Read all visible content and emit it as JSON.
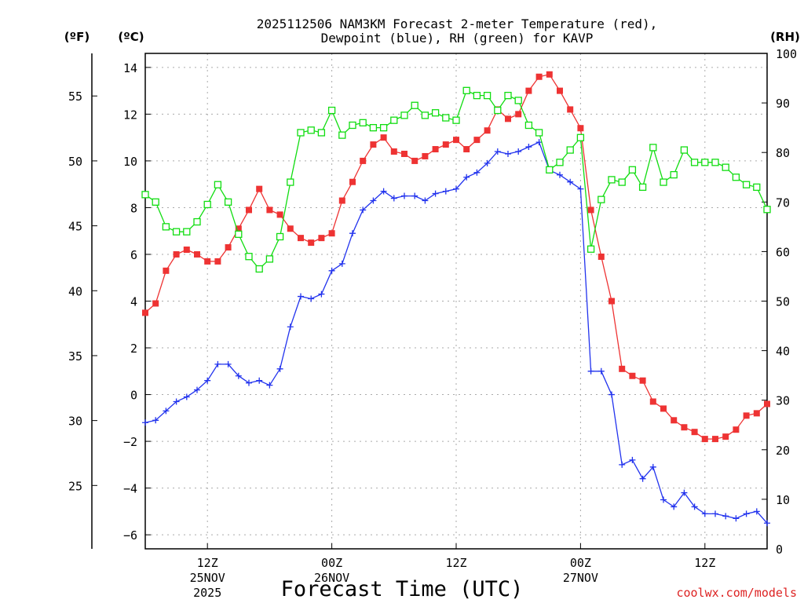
{
  "chart_data": {
    "type": "line",
    "title_line1": "2025112506 NAM3KM Forecast 2-meter Temperature (red),",
    "title_line2": "Dewpoint (blue), RH (green) for KAVP",
    "xlabel": "Forecast Time (UTC)",
    "unit_f": "(ºF)",
    "unit_c": "(ºC)",
    "unit_rh": "(RH)",
    "watermark": "coolwx.com/models",
    "x_range_hours": [
      0,
      60
    ],
    "ylim_c": [
      -6.6,
      14.6
    ],
    "ylim_rh": [
      0,
      100
    ],
    "yticks_c": [
      "14",
      "12",
      "10",
      "8",
      "6",
      "4",
      "2",
      "0",
      "−2",
      "−4",
      "−6"
    ],
    "yticks_c_values": [
      14,
      12,
      10,
      8,
      6,
      4,
      2,
      0,
      -2,
      -4,
      -6
    ],
    "yticks_f": [
      "55",
      "50",
      "45",
      "40",
      "35",
      "30",
      "25"
    ],
    "yticks_f_values": [
      55,
      50,
      45,
      40,
      35,
      30,
      25
    ],
    "yticks_rh": [
      "100",
      "90",
      "80",
      "70",
      "60",
      "50",
      "40",
      "30",
      "20",
      "10",
      "0"
    ],
    "yticks_rh_values": [
      100,
      90,
      80,
      70,
      60,
      50,
      40,
      30,
      20,
      10,
      0
    ],
    "xticks": [
      {
        "hour": 6,
        "line1": "12Z",
        "line2": "25NOV",
        "line3": "2025"
      },
      {
        "hour": 18,
        "line1": "00Z",
        "line2": "26NOV",
        "line3": ""
      },
      {
        "hour": 30,
        "line1": "12Z",
        "line2": "",
        "line3": ""
      },
      {
        "hour": 42,
        "line1": "00Z",
        "line2": "27NOV",
        "line3": ""
      },
      {
        "hour": 54,
        "line1": "12Z",
        "line2": "",
        "line3": ""
      }
    ],
    "series": [
      {
        "name": "Temperature",
        "color": "#ee3333",
        "axis": "c",
        "marker": "filled-square",
        "values": [
          3.5,
          3.9,
          5.3,
          6.0,
          6.2,
          6.0,
          5.7,
          5.7,
          6.3,
          7.1,
          7.9,
          8.8,
          7.9,
          7.7,
          7.1,
          6.7,
          6.5,
          6.7,
          6.9,
          8.3,
          9.1,
          10.0,
          10.7,
          11.0,
          10.4,
          10.3,
          10.0,
          10.2,
          10.5,
          10.7,
          10.9,
          10.5,
          10.9,
          11.3,
          12.2,
          11.8,
          12.0,
          13.0,
          13.6,
          13.7,
          13.0,
          12.2,
          11.4,
          7.9,
          5.9,
          4.0,
          1.1,
          0.8,
          0.6,
          -0.3,
          -0.6,
          -1.1,
          -1.4,
          -1.6,
          -1.9,
          -1.9,
          -1.8,
          -1.5,
          -0.9,
          -0.8,
          -0.4
        ]
      },
      {
        "name": "Dewpoint",
        "color": "#2233ee",
        "axis": "c",
        "marker": "plus",
        "values": [
          -1.2,
          -1.1,
          -0.7,
          -0.3,
          -0.1,
          0.2,
          0.6,
          1.3,
          1.3,
          0.8,
          0.5,
          0.6,
          0.4,
          1.1,
          2.9,
          4.2,
          4.1,
          4.3,
          5.3,
          5.6,
          6.9,
          7.9,
          8.3,
          8.7,
          8.4,
          8.5,
          8.5,
          8.3,
          8.6,
          8.7,
          8.8,
          9.3,
          9.5,
          9.9,
          10.4,
          10.3,
          10.4,
          10.6,
          10.8,
          9.6,
          9.4,
          9.1,
          8.8,
          1.0,
          1.0,
          0.0,
          -3.0,
          -2.8,
          -3.6,
          -3.1,
          -4.5,
          -4.8,
          -4.2,
          -4.8,
          -5.1,
          -5.1,
          -5.2,
          -5.3,
          -5.1,
          -5.0,
          -5.5
        ]
      },
      {
        "name": "RH",
        "color": "#11dd11",
        "axis": "rh",
        "marker": "open-square",
        "values": [
          71.5,
          70.0,
          65.0,
          64.0,
          64.0,
          66.0,
          69.5,
          73.5,
          70.0,
          63.5,
          59.0,
          56.5,
          58.5,
          63.0,
          74.0,
          84.0,
          84.5,
          84.0,
          88.5,
          83.5,
          85.5,
          86.0,
          85.0,
          85.0,
          86.5,
          87.5,
          89.5,
          87.5,
          88.0,
          87.0,
          86.5,
          92.5,
          91.5,
          91.5,
          88.5,
          91.5,
          90.5,
          85.5,
          84.0,
          76.5,
          78.0,
          80.5,
          83.0,
          60.5,
          70.5,
          74.5,
          74.0,
          76.5,
          73.0,
          81.0,
          74.0,
          75.5,
          80.5,
          78.0,
          78.0,
          78.0,
          77.0,
          75.0,
          73.5,
          73.0,
          68.5
        ]
      }
    ]
  }
}
